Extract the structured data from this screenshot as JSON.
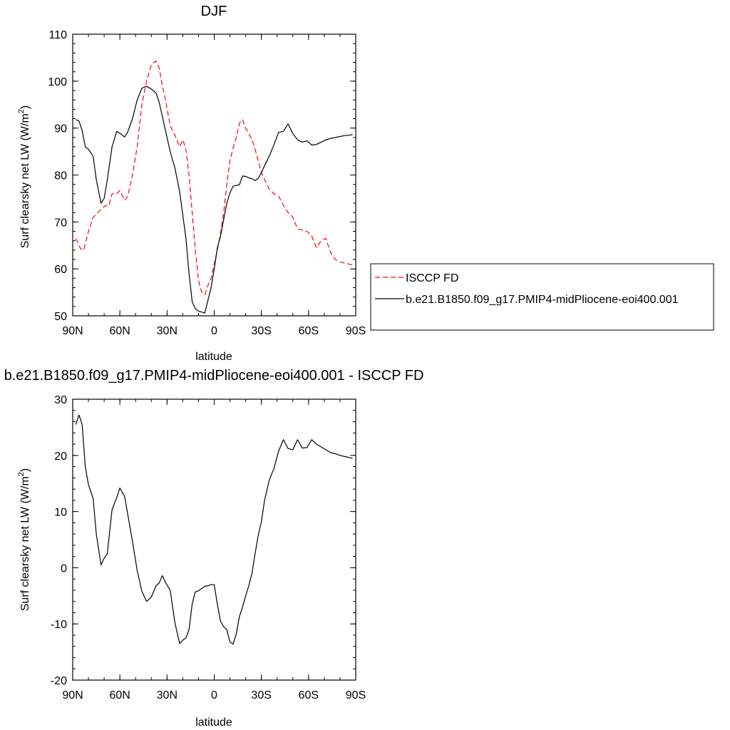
{
  "chart_data": [
    {
      "type": "line",
      "title": "DJF",
      "xlabel": "latitude",
      "ylabel": "Surf clearsky net LW (W/m",
      "ylabel_sup": "2",
      "ylabel_tail": ")",
      "xlim": [
        90,
        -90
      ],
      "ylim": [
        50,
        110
      ],
      "x_ticks": [
        90,
        60,
        30,
        0,
        -30,
        -60,
        -90
      ],
      "x_tick_labels": [
        "90N",
        "60N",
        "30N",
        "0",
        "30S",
        "60S",
        "90S"
      ],
      "y_ticks": [
        50,
        60,
        70,
        80,
        90,
        100,
        110
      ],
      "y_tick_labels": [
        "50",
        "60",
        "70",
        "80",
        "90",
        "100",
        "110"
      ],
      "legend_position": "right",
      "series": [
        {
          "name": "ISCCP FD",
          "color": "#ff0000",
          "dash": "dashed",
          "x": [
            88,
            85,
            83,
            80,
            77,
            74,
            71,
            69,
            67,
            65,
            62,
            60,
            57,
            55,
            52,
            49,
            46,
            43,
            40,
            37,
            35,
            33,
            31,
            28,
            25,
            22,
            20,
            18,
            16,
            14,
            12,
            10,
            8,
            6,
            4,
            2,
            0,
            -2,
            -4,
            -6,
            -8,
            -10,
            -12,
            -14,
            -16,
            -18,
            -20,
            -22,
            -24,
            -26,
            -28,
            -30,
            -32,
            -35,
            -38,
            -41,
            -44,
            -47,
            -50,
            -53,
            -56,
            -59,
            -62,
            -65,
            -68,
            -71,
            -74,
            -77,
            -80,
            -83,
            -86,
            -88
          ],
          "y": [
            66.5,
            64.3,
            64,
            68,
            71,
            72,
            73,
            73.5,
            73.5,
            76,
            76,
            76.7,
            74.6,
            75.5,
            80,
            86,
            95,
            100,
            103.5,
            104.3,
            102.8,
            99,
            96,
            90.5,
            88.5,
            86,
            87.5,
            85.5,
            80,
            72,
            64,
            57.5,
            55,
            54.5,
            56.5,
            58,
            61,
            64,
            67.5,
            72,
            78,
            83,
            85.8,
            88,
            91,
            91.8,
            90,
            88.8,
            87.6,
            85.5,
            83,
            80.5,
            79,
            77,
            76,
            75.5,
            73.5,
            72,
            71,
            68.5,
            68.3,
            68,
            67,
            64.5,
            66,
            66.5,
            63.5,
            62,
            61.5,
            61.2,
            61,
            60.8
          ]
        },
        {
          "name": "b.e21.B1850.f09_g17.PMIP4-midPliocene-eoi400.001",
          "color": "#000000",
          "dash": "solid",
          "x": [
            88,
            86,
            84,
            82,
            80,
            77,
            75,
            72,
            70,
            68,
            65,
            62,
            60,
            57,
            55,
            52,
            49,
            46,
            43,
            40,
            37,
            35,
            33,
            31,
            28,
            25,
            22,
            20,
            18,
            16,
            14,
            12,
            10,
            8,
            6,
            4,
            2,
            0,
            -2,
            -4,
            -6,
            -8,
            -10,
            -12,
            -14,
            -16,
            -18,
            -20,
            -22,
            -24,
            -26,
            -28,
            -30,
            -32,
            -35,
            -38,
            -41,
            -44,
            -47,
            -50,
            -53,
            -56,
            -59,
            -62,
            -65,
            -68,
            -71,
            -74,
            -77,
            -80,
            -83,
            -86,
            -88
          ],
          "y": [
            91.8,
            91.5,
            89.5,
            86,
            85.5,
            84,
            79,
            74,
            75,
            79,
            86,
            89.3,
            88.9,
            88.1,
            89.2,
            92,
            96,
            98.5,
            98.9,
            98.3,
            97.5,
            95.5,
            92.5,
            89.5,
            85,
            81.5,
            76.5,
            71.5,
            66.5,
            59,
            53,
            51.5,
            51,
            50.8,
            50.6,
            53.3,
            56,
            60,
            64.5,
            67,
            70.5,
            74,
            76.2,
            77.6,
            77.8,
            77.9,
            79.8,
            79.7,
            79.4,
            79.2,
            78.8,
            79.3,
            80.5,
            82,
            84,
            86.5,
            89.1,
            89.3,
            90.9,
            88.8,
            87.5,
            87,
            87.3,
            86.4,
            86.5,
            87,
            87.5,
            87.8,
            88,
            88.2,
            88.4,
            88.5,
            88.6
          ]
        }
      ]
    },
    {
      "type": "line",
      "title": "b.e21.B1850.f09_g17.PMIP4-midPliocene-eoi400.001 - ISCCP FD",
      "xlabel": "latitude",
      "ylabel": "Surf clearsky net LW (W/m",
      "ylabel_sup": "2",
      "ylabel_tail": ")",
      "xlim": [
        90,
        -90
      ],
      "ylim": [
        -20,
        30
      ],
      "x_ticks": [
        90,
        60,
        30,
        0,
        -30,
        -60,
        -90
      ],
      "x_tick_labels": [
        "90N",
        "60N",
        "30N",
        "0",
        "30S",
        "60S",
        "90S"
      ],
      "y_ticks": [
        -20,
        -10,
        0,
        10,
        20,
        30
      ],
      "y_tick_labels": [
        "-20",
        "-10",
        "0",
        "10",
        "20",
        "30"
      ],
      "series": [
        {
          "color": "#000000",
          "dash": "solid",
          "x": [
            88,
            86,
            84,
            82,
            80,
            77,
            75,
            72,
            70,
            68,
            65,
            62,
            60,
            57,
            55,
            52,
            49,
            46,
            43,
            40,
            37,
            35,
            33,
            31,
            28,
            25,
            22,
            20,
            18,
            16,
            14,
            12,
            10,
            8,
            6,
            4,
            2,
            0,
            -2,
            -4,
            -6,
            -8,
            -10,
            -12,
            -14,
            -16,
            -18,
            -20,
            -22,
            -24,
            -26,
            -28,
            -30,
            -32,
            -35,
            -38,
            -41,
            -44,
            -47,
            -50,
            -53,
            -56,
            -59,
            -62,
            -65,
            -68,
            -71,
            -74,
            -77,
            -80,
            -83,
            -86,
            -88
          ],
          "y": [
            25.5,
            27.2,
            25.5,
            18,
            14.8,
            12.3,
            6,
            0.5,
            1.7,
            2.5,
            10.3,
            12.5,
            14.2,
            12.7,
            9.5,
            4.7,
            -0.5,
            -4.2,
            -6,
            -5.2,
            -3.2,
            -2.7,
            -1.4,
            -2.6,
            -4,
            -9.8,
            -13.5,
            -12.9,
            -12.5,
            -11,
            -6.4,
            -4.3,
            -4.1,
            -3.7,
            -3.3,
            -3.2,
            -3,
            -3,
            -6.5,
            -9.5,
            -10.5,
            -11,
            -13.2,
            -13.6,
            -11.8,
            -8.7,
            -7,
            -5,
            -3.2,
            -1,
            2.5,
            5.8,
            8.2,
            12,
            15.6,
            17.7,
            20.8,
            22.8,
            21.2,
            21,
            22.8,
            21.3,
            21.4,
            22.8,
            22,
            21.5,
            21,
            20.5,
            20.3,
            20,
            19.8,
            19.6,
            19.5
          ]
        }
      ]
    }
  ]
}
